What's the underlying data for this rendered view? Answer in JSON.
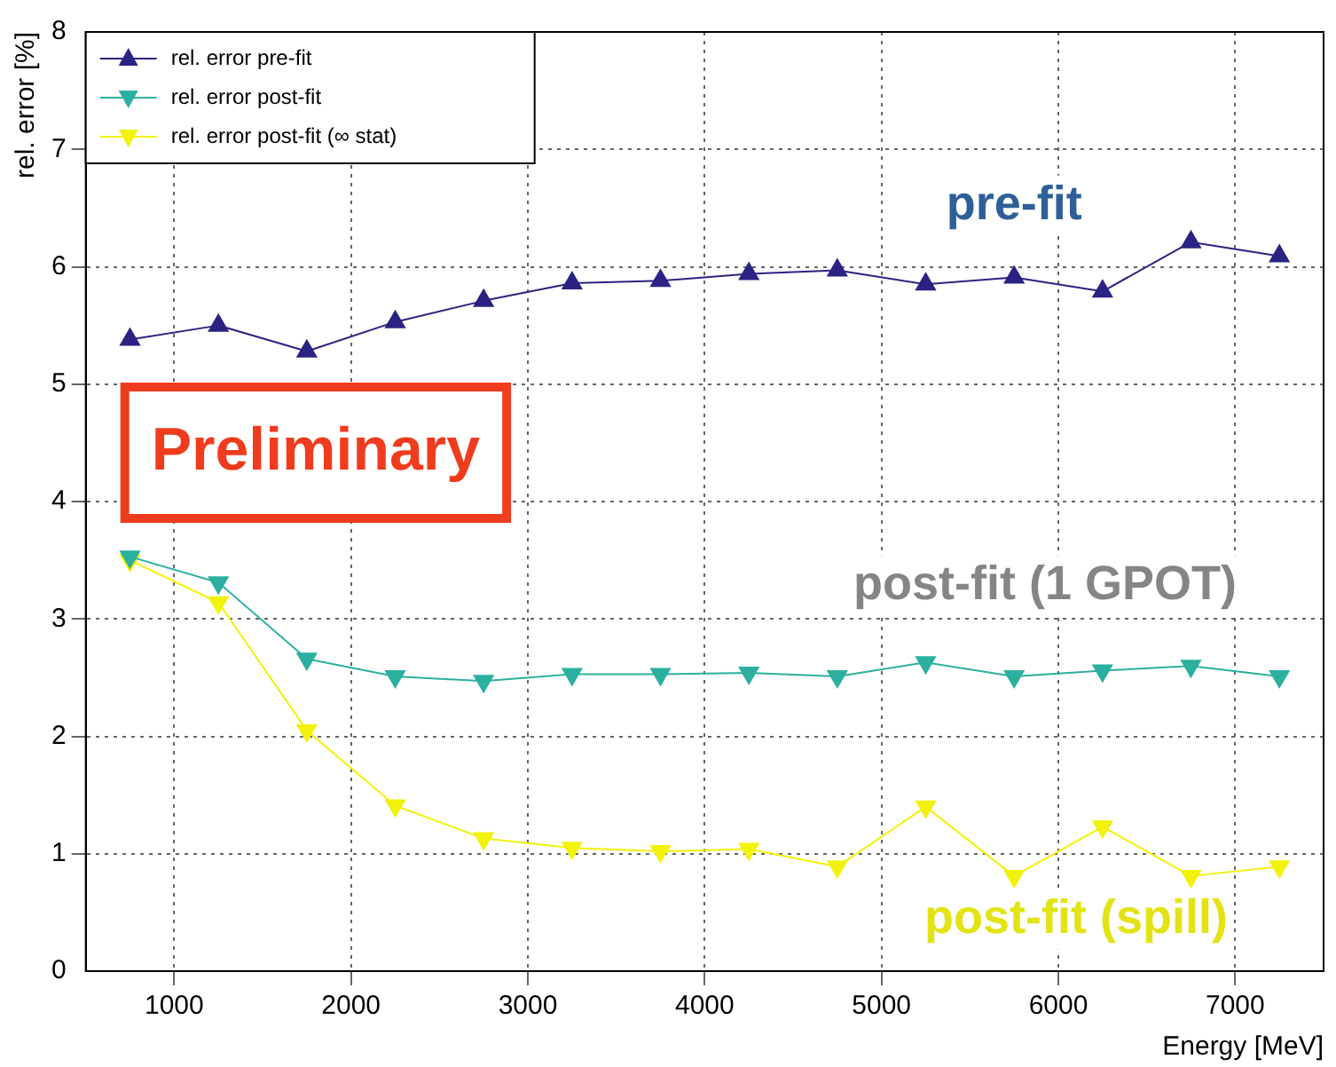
{
  "chart_data": {
    "type": "line",
    "xlabel": "Energy [MeV]",
    "ylabel": "rel. error [%]",
    "x": [
      750,
      1250,
      1750,
      2250,
      2750,
      3250,
      3750,
      4250,
      4750,
      5250,
      5750,
      6250,
      6750,
      7250
    ],
    "series": [
      {
        "name": "rel. error pre-fit",
        "color": "#2b2383",
        "values": [
          5.38,
          5.5,
          5.28,
          5.53,
          5.71,
          5.86,
          5.88,
          5.94,
          5.97,
          5.85,
          5.91,
          5.79,
          6.21,
          6.09
        ]
      },
      {
        "name": "rel. error post-fit",
        "color": "#2bb0a0",
        "values": [
          3.53,
          3.31,
          2.66,
          2.51,
          2.47,
          2.53,
          2.53,
          2.54,
          2.51,
          2.63,
          2.51,
          2.56,
          2.6,
          2.51
        ]
      },
      {
        "name": "rel. error post-fit (∞ stat)",
        "color": "#f2f20a",
        "values": [
          3.5,
          3.14,
          2.05,
          1.41,
          1.13,
          1.05,
          1.02,
          1.04,
          0.89,
          1.4,
          0.81,
          1.23,
          0.81,
          0.89
        ]
      }
    ],
    "xlim": [
      500,
      7500
    ],
    "xticks": [
      1000,
      2000,
      3000,
      4000,
      5000,
      6000,
      7000
    ],
    "ylim": [
      0,
      8
    ],
    "yticks": [
      0,
      1,
      2,
      3,
      4,
      5,
      6,
      7,
      8
    ],
    "grid": true,
    "legend": "top left",
    "marker": "triangle",
    "annotations": [
      "pre-fit",
      "post-fit (1 GPOT)",
      "post-fit (spill)",
      "Preliminary"
    ]
  }
}
